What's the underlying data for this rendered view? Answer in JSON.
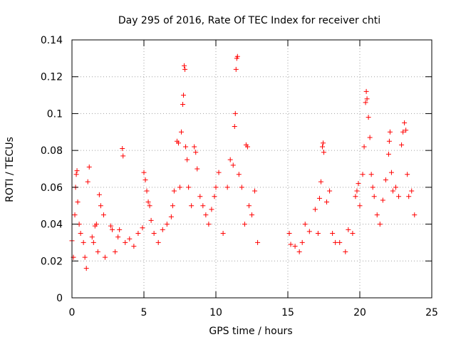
{
  "chart_data": {
    "type": "scatter",
    "title": "Day 295 of 2016, Rate Of TEC Index for receiver chti",
    "xlabel": "GPS time / hours",
    "ylabel": "ROTI / TECUs",
    "xlim": [
      0,
      25
    ],
    "ylim": [
      0,
      0.14
    ],
    "x_ticks": [
      0,
      5,
      10,
      15,
      20,
      25
    ],
    "x_tick_labels": [
      "0",
      "5",
      "10",
      "15",
      "20",
      "25"
    ],
    "y_ticks": [
      0,
      0.02,
      0.04,
      0.06,
      0.08,
      0.1,
      0.12,
      0.14
    ],
    "y_tick_labels": [
      "0",
      "0.02",
      "0.04",
      "0.06",
      "0.08",
      "0.1",
      "0.12",
      "0.14"
    ],
    "grid": true,
    "marker": "plus",
    "color": "#ff0000",
    "data_gap_hours": [
      13.0,
      15.0
    ],
    "series": [
      {
        "name": "ROTI",
        "points": [
          [
            0.0,
            0.031
          ],
          [
            0.1,
            0.022
          ],
          [
            0.2,
            0.045
          ],
          [
            0.25,
            0.06
          ],
          [
            0.3,
            0.067
          ],
          [
            0.35,
            0.069
          ],
          [
            0.4,
            0.052
          ],
          [
            0.5,
            0.04
          ],
          [
            0.6,
            0.035
          ],
          [
            0.8,
            0.03
          ],
          [
            0.9,
            0.022
          ],
          [
            1.0,
            0.016
          ],
          [
            1.1,
            0.063
          ],
          [
            1.2,
            0.071
          ],
          [
            1.4,
            0.033
          ],
          [
            1.5,
            0.03
          ],
          [
            1.6,
            0.039
          ],
          [
            1.7,
            0.04
          ],
          [
            1.8,
            0.025
          ],
          [
            1.9,
            0.056
          ],
          [
            2.0,
            0.05
          ],
          [
            2.2,
            0.045
          ],
          [
            2.3,
            0.022
          ],
          [
            2.7,
            0.039
          ],
          [
            2.8,
            0.037
          ],
          [
            3.0,
            0.025
          ],
          [
            3.2,
            0.033
          ],
          [
            3.3,
            0.037
          ],
          [
            3.5,
            0.081
          ],
          [
            3.55,
            0.077
          ],
          [
            3.7,
            0.03
          ],
          [
            4.0,
            0.032
          ],
          [
            4.3,
            0.028
          ],
          [
            4.6,
            0.035
          ],
          [
            4.9,
            0.038
          ],
          [
            5.0,
            0.068
          ],
          [
            5.1,
            0.064
          ],
          [
            5.2,
            0.058
          ],
          [
            5.3,
            0.052
          ],
          [
            5.4,
            0.05
          ],
          [
            5.5,
            0.042
          ],
          [
            5.7,
            0.035
          ],
          [
            6.0,
            0.03
          ],
          [
            6.3,
            0.037
          ],
          [
            6.6,
            0.04
          ],
          [
            6.9,
            0.044
          ],
          [
            7.0,
            0.05
          ],
          [
            7.1,
            0.058
          ],
          [
            7.3,
            0.085
          ],
          [
            7.4,
            0.084
          ],
          [
            7.5,
            0.06
          ],
          [
            7.6,
            0.09
          ],
          [
            7.7,
            0.105
          ],
          [
            7.75,
            0.11
          ],
          [
            7.8,
            0.126
          ],
          [
            7.85,
            0.124
          ],
          [
            7.9,
            0.082
          ],
          [
            8.0,
            0.075
          ],
          [
            8.1,
            0.06
          ],
          [
            8.3,
            0.05
          ],
          [
            8.5,
            0.082
          ],
          [
            8.6,
            0.079
          ],
          [
            8.7,
            0.07
          ],
          [
            8.9,
            0.055
          ],
          [
            9.1,
            0.05
          ],
          [
            9.3,
            0.045
          ],
          [
            9.5,
            0.04
          ],
          [
            9.7,
            0.048
          ],
          [
            9.9,
            0.055
          ],
          [
            10.0,
            0.06
          ],
          [
            10.2,
            0.068
          ],
          [
            10.5,
            0.035
          ],
          [
            10.8,
            0.06
          ],
          [
            11.0,
            0.075
          ],
          [
            11.2,
            0.072
          ],
          [
            11.3,
            0.093
          ],
          [
            11.35,
            0.1
          ],
          [
            11.4,
            0.124
          ],
          [
            11.45,
            0.13
          ],
          [
            11.5,
            0.131
          ],
          [
            11.6,
            0.067
          ],
          [
            11.8,
            0.06
          ],
          [
            12.0,
            0.04
          ],
          [
            12.1,
            0.083
          ],
          [
            12.2,
            0.082
          ],
          [
            12.3,
            0.05
          ],
          [
            12.5,
            0.045
          ],
          [
            12.7,
            0.058
          ],
          [
            12.9,
            0.03
          ],
          [
            15.1,
            0.035
          ],
          [
            15.2,
            0.029
          ],
          [
            15.5,
            0.028
          ],
          [
            15.8,
            0.025
          ],
          [
            16.0,
            0.03
          ],
          [
            16.2,
            0.04
          ],
          [
            16.5,
            0.036
          ],
          [
            16.9,
            0.048
          ],
          [
            17.1,
            0.035
          ],
          [
            17.2,
            0.054
          ],
          [
            17.3,
            0.063
          ],
          [
            17.4,
            0.082
          ],
          [
            17.45,
            0.084
          ],
          [
            17.5,
            0.079
          ],
          [
            17.7,
            0.052
          ],
          [
            17.9,
            0.058
          ],
          [
            18.1,
            0.035
          ],
          [
            18.3,
            0.03
          ],
          [
            18.6,
            0.03
          ],
          [
            19.0,
            0.025
          ],
          [
            19.2,
            0.037
          ],
          [
            19.5,
            0.035
          ],
          [
            19.7,
            0.055
          ],
          [
            19.8,
            0.058
          ],
          [
            19.9,
            0.062
          ],
          [
            20.0,
            0.05
          ],
          [
            20.2,
            0.067
          ],
          [
            20.3,
            0.082
          ],
          [
            20.4,
            0.106
          ],
          [
            20.45,
            0.112
          ],
          [
            20.5,
            0.108
          ],
          [
            20.6,
            0.098
          ],
          [
            20.7,
            0.087
          ],
          [
            20.8,
            0.067
          ],
          [
            20.9,
            0.06
          ],
          [
            21.0,
            0.055
          ],
          [
            21.2,
            0.045
          ],
          [
            21.4,
            0.04
          ],
          [
            21.6,
            0.053
          ],
          [
            21.8,
            0.064
          ],
          [
            22.0,
            0.078
          ],
          [
            22.05,
            0.085
          ],
          [
            22.1,
            0.09
          ],
          [
            22.2,
            0.068
          ],
          [
            22.3,
            0.058
          ],
          [
            22.5,
            0.06
          ],
          [
            22.7,
            0.055
          ],
          [
            22.9,
            0.083
          ],
          [
            23.0,
            0.09
          ],
          [
            23.1,
            0.095
          ],
          [
            23.2,
            0.091
          ],
          [
            23.3,
            0.067
          ],
          [
            23.4,
            0.055
          ],
          [
            23.6,
            0.058
          ],
          [
            23.8,
            0.045
          ]
        ]
      }
    ]
  }
}
